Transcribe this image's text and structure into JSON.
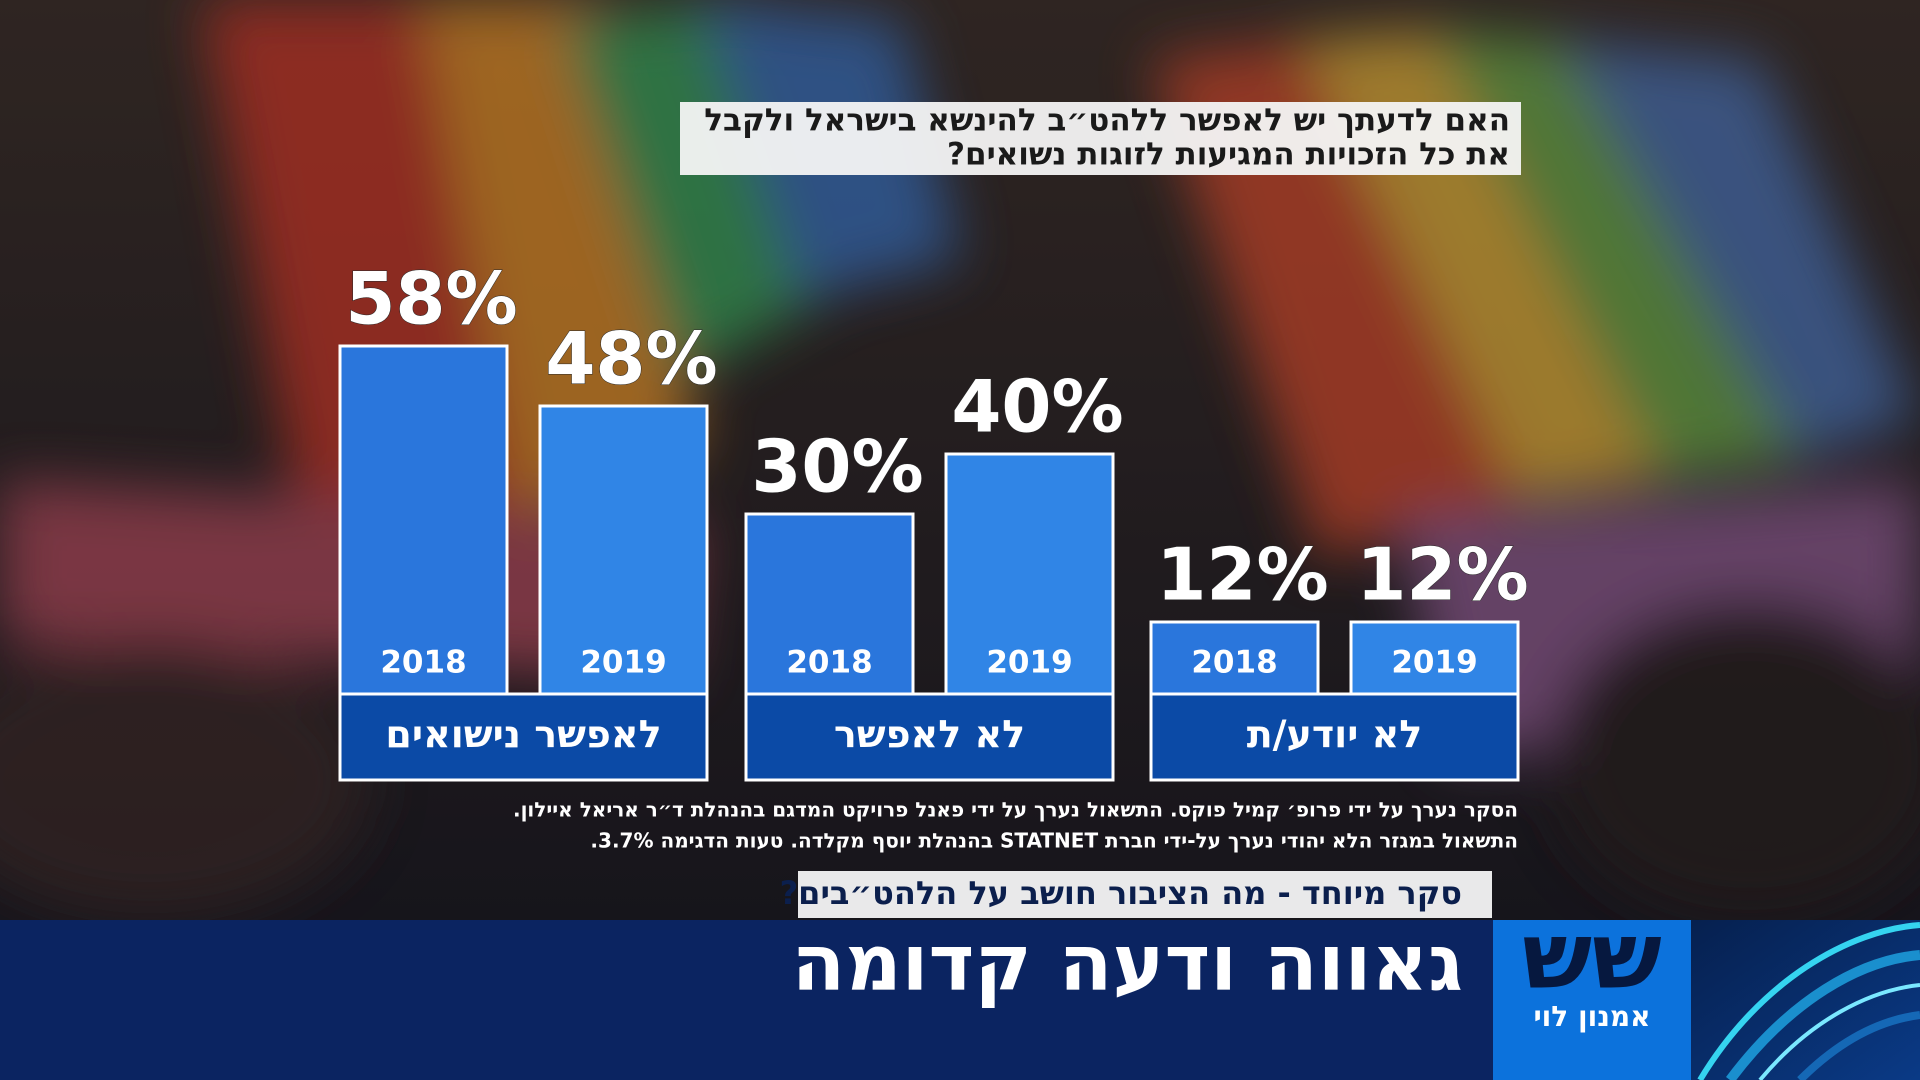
{
  "chart_data": {
    "type": "bar",
    "title": [
      "האם לדעתך יש לאפשר ללהט״ב להינשא בישראל ולקבל",
      "את כל הזכויות המגיעות לזוגות נשואים?"
    ],
    "categories": [
      "לאפשר נישואים",
      "לא לאפשר",
      "לא יודע/ת"
    ],
    "series": [
      {
        "name": "2018",
        "color": "#2a76dc",
        "values": [
          58,
          30,
          12
        ],
        "value_labels": [
          "58%",
          "30%",
          "12%"
        ]
      },
      {
        "name": "2019",
        "color": "#3085e6",
        "values": [
          48,
          40,
          12
        ],
        "value_labels": [
          "48%",
          "40%",
          "12%"
        ]
      }
    ],
    "footnotes": [
      "הסקר נערך על ידי פרופ׳ קמיל פוקס. התשאול נערך על ידי פאנל פרויקט המדגם בהנהלת ד״ר אריאל איילון.",
      "התשאול במגזר הלא יהודי נערך על-ידי חברת STATNET בהנהלת יוסף מקלדה. טעות הדגימה 3.7%."
    ]
  },
  "subtitle": "סקר מיוחד - מה הציבור חושב על הלהט״בים?",
  "headline": "גאווה ודעה קדומה",
  "logo": "שש",
  "host": "אמנון לוי"
}
